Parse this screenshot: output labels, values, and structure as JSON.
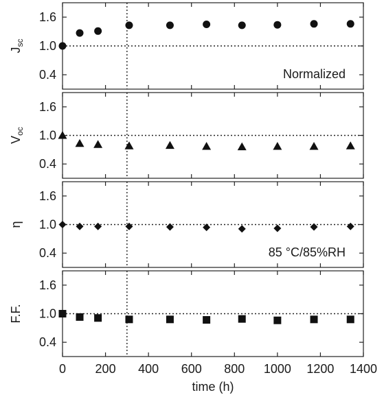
{
  "chart_data": {
    "type": "scatter",
    "layout": "four vertically stacked panels sharing the x axis",
    "xlabel": "time (h)",
    "x_ticks": [
      "0",
      "200",
      "400",
      "600",
      "800",
      "1000",
      "1200",
      "1400"
    ],
    "xlim": [
      0,
      1400
    ],
    "ylim": [
      0.1,
      1.9
    ],
    "y_ticks": [
      "0.4",
      "1.0",
      "1.6"
    ],
    "reference_line_y": 1.0,
    "reference_line_x": 300,
    "color": "#111111",
    "panels": [
      {
        "ylabel_main": "J",
        "ylabel_sub": "sc",
        "marker": "circle",
        "annotation": "Normalized",
        "annotation_position": "bottom-right",
        "x": [
          0,
          80,
          165,
          310,
          500,
          670,
          835,
          1000,
          1170,
          1340
        ],
        "y": [
          1.0,
          1.27,
          1.31,
          1.43,
          1.43,
          1.45,
          1.43,
          1.44,
          1.46,
          1.46
        ]
      },
      {
        "ylabel_main": "V",
        "ylabel_sub": "oc",
        "marker": "triangle",
        "annotation": "",
        "x": [
          0,
          80,
          165,
          310,
          500,
          670,
          835,
          1000,
          1170,
          1340
        ],
        "y": [
          1.0,
          0.83,
          0.81,
          0.78,
          0.79,
          0.77,
          0.76,
          0.77,
          0.77,
          0.78
        ]
      },
      {
        "ylabel_main": "η",
        "ylabel_sub": "",
        "marker": "diamond",
        "annotation": "85 °C/85%RH",
        "annotation_position": "bottom-right",
        "x": [
          0,
          80,
          165,
          310,
          500,
          670,
          835,
          1000,
          1170,
          1340
        ],
        "y": [
          1.0,
          0.96,
          0.96,
          0.96,
          0.95,
          0.94,
          0.91,
          0.92,
          0.95,
          0.96
        ]
      },
      {
        "ylabel_main": "F.F.",
        "ylabel_sub": "",
        "marker": "square",
        "annotation": "",
        "x": [
          0,
          80,
          165,
          310,
          500,
          670,
          835,
          1000,
          1170,
          1340
        ],
        "y": [
          1.0,
          0.93,
          0.91,
          0.88,
          0.88,
          0.87,
          0.89,
          0.86,
          0.88,
          0.88
        ]
      }
    ]
  }
}
